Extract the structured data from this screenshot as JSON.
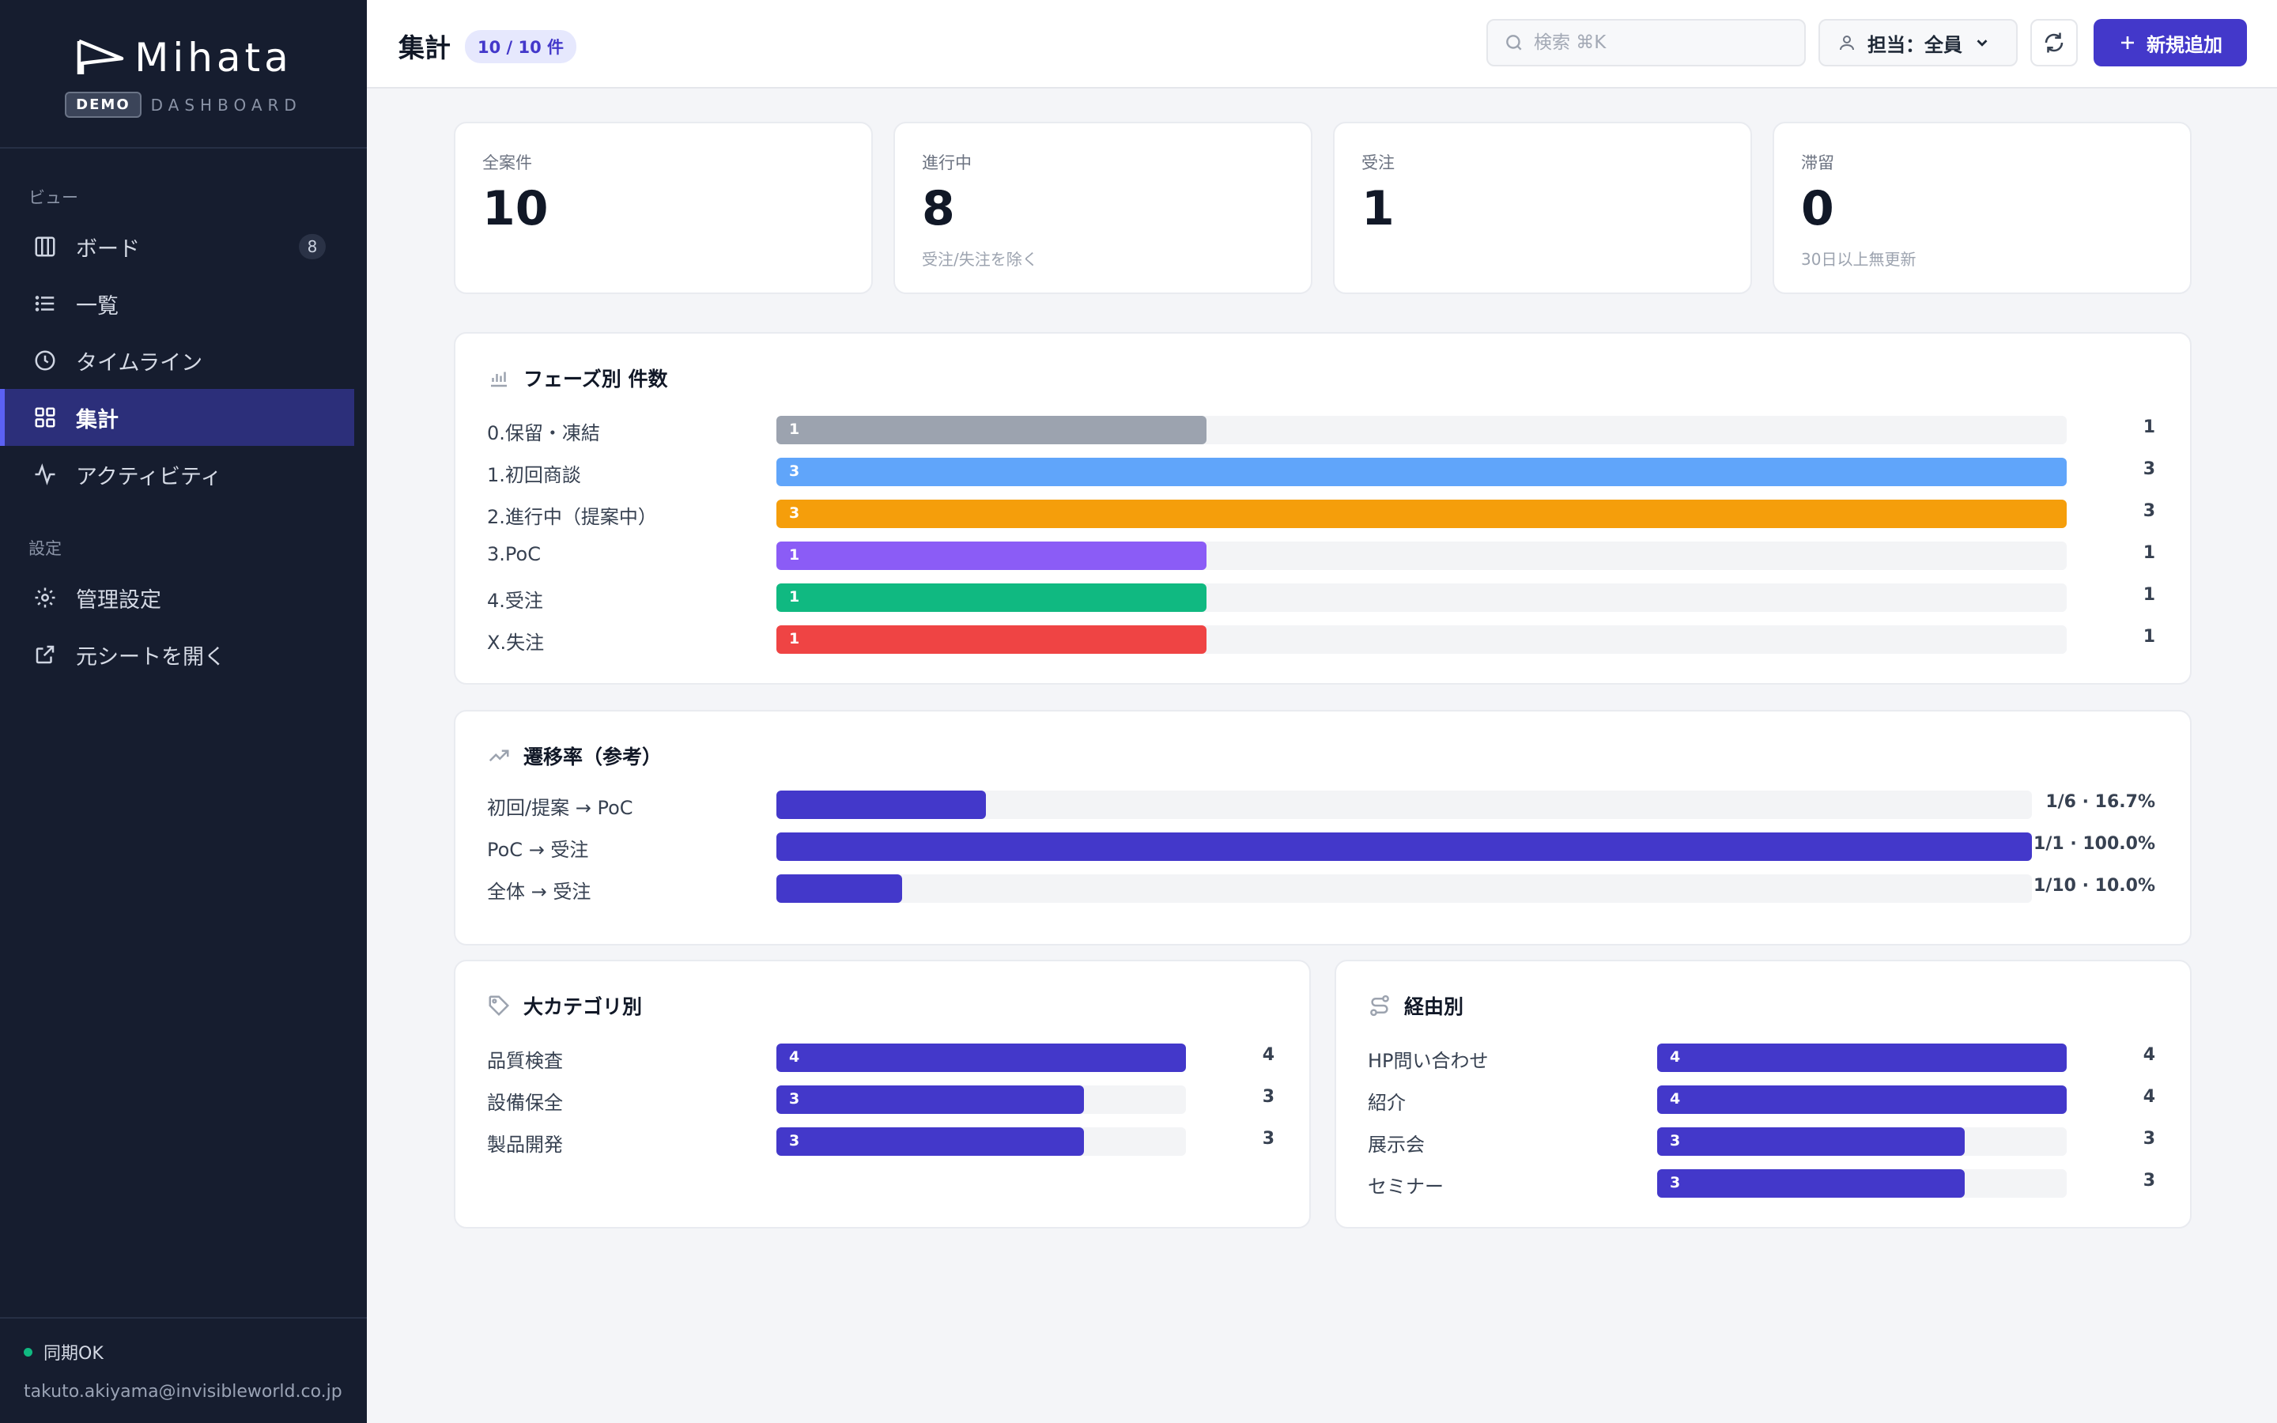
{
  "brand": {
    "name": "Mihata",
    "badge": "DEMO",
    "subtitle": "DASHBOARD"
  },
  "sidebar": {
    "view_section": "ビュー",
    "items": [
      {
        "label": "ボード",
        "icon": "columns-icon",
        "count": "8"
      },
      {
        "label": "一覧",
        "icon": "list-icon"
      },
      {
        "label": "タイムライン",
        "icon": "clock-icon"
      },
      {
        "label": "集計",
        "icon": "grid-icon",
        "active": true
      },
      {
        "label": "アクティビティ",
        "icon": "activity-icon"
      }
    ],
    "settings_section": "設定",
    "settings_items": [
      {
        "label": "管理設定",
        "icon": "gear-icon"
      },
      {
        "label": "元シートを開く",
        "icon": "external-link-icon"
      }
    ],
    "footer": {
      "sync_status": "同期OK",
      "email": "takuto.akiyama@invisibleworld.co.jp"
    }
  },
  "header": {
    "title": "集計",
    "count_badge": "10 / 10 件",
    "search_placeholder": "検索 ⌘K",
    "assignee_filter": "担当：全員",
    "add_button": "新規追加"
  },
  "stats": [
    {
      "label": "全案件",
      "value": "10",
      "sub": ""
    },
    {
      "label": "進行中",
      "value": "8",
      "sub": "受注/失注を除く"
    },
    {
      "label": "受注",
      "value": "1",
      "sub": ""
    },
    {
      "label": "滞留",
      "value": "0",
      "sub": "30日以上無更新"
    }
  ],
  "phase_panel": {
    "title": "フェーズ別 件数",
    "max": 3,
    "rows": [
      {
        "label": "0.保留・凍結",
        "value": 1,
        "color": "#9ca3af"
      },
      {
        "label": "1.初回商談",
        "value": 3,
        "color": "#60a5fa"
      },
      {
        "label": "2.進行中（提案中）",
        "value": 3,
        "color": "#f59e0b"
      },
      {
        "label": "3.PoC",
        "value": 1,
        "color": "#8b5cf6"
      },
      {
        "label": "4.受注",
        "value": 1,
        "color": "#10b981"
      },
      {
        "label": "X.失注",
        "value": 1,
        "color": "#ef4444"
      }
    ]
  },
  "conversion_panel": {
    "title": "遷移率（参考）",
    "rows": [
      {
        "label": "初回/提案 → PoC",
        "rate": 0.167,
        "text": "1/6 · 16.7%"
      },
      {
        "label": "PoC → 受注",
        "rate": 1.0,
        "text": "1/1 · 100.0%"
      },
      {
        "label": "全体 → 受注",
        "rate": 0.1,
        "text": "1/10 · 10.0%"
      }
    ]
  },
  "category_panel": {
    "title": "大カテゴリ別",
    "max": 4,
    "rows": [
      {
        "label": "品質検査",
        "value": 4
      },
      {
        "label": "設備保全",
        "value": 3
      },
      {
        "label": "製品開発",
        "value": 3
      }
    ]
  },
  "channel_panel": {
    "title": "経由別",
    "max": 4,
    "rows": [
      {
        "label": "HP問い合わせ",
        "value": 4
      },
      {
        "label": "紹介",
        "value": 4
      },
      {
        "label": "展示会",
        "value": 3
      },
      {
        "label": "セミナー",
        "value": 3
      }
    ]
  },
  "colors": {
    "accent": "#4338ca",
    "sidebar_bg": "#161d2f",
    "active_nav": "#2c2f7a"
  }
}
